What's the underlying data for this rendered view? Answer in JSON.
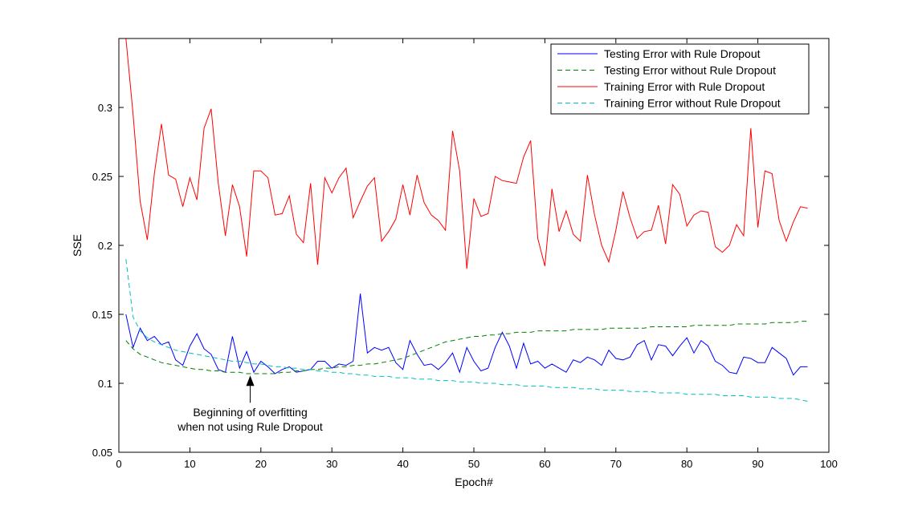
{
  "chart_data": {
    "type": "line",
    "xlabel": "Epoch#",
    "ylabel": "SSE",
    "xlim": [
      0,
      100
    ],
    "ylim": [
      0.05,
      0.35
    ],
    "xticks": [
      0,
      10,
      20,
      30,
      40,
      50,
      60,
      70,
      80,
      90,
      100
    ],
    "yticks": [
      0.05,
      0.1,
      0.15,
      0.2,
      0.25,
      0.3
    ],
    "ytick_labels": [
      "0.05",
      "0.1",
      "0.15",
      "0.2",
      "0.25",
      "0.3"
    ],
    "grid": false,
    "legend_position": "top-right",
    "series": [
      {
        "name": "Testing Error with Rule Dropout",
        "color": "#0000ff",
        "style": "solid",
        "x": [
          1,
          2,
          3,
          4,
          5,
          6,
          7,
          8,
          9,
          10,
          11,
          12,
          13,
          14,
          15,
          16,
          17,
          18,
          19,
          20,
          21,
          22,
          23,
          24,
          25,
          26,
          27,
          28,
          29,
          30,
          31,
          32,
          33,
          34,
          35,
          36,
          37,
          38,
          39,
          40,
          41,
          42,
          43,
          44,
          45,
          46,
          47,
          48,
          49,
          50,
          51,
          52,
          53,
          54,
          55,
          56,
          57,
          58,
          59,
          60,
          61,
          62,
          63,
          64,
          65,
          66,
          67,
          68,
          69,
          70,
          71,
          72,
          73,
          74,
          75,
          76,
          77,
          78,
          79,
          80,
          81,
          82,
          83,
          84,
          85,
          86,
          87,
          88,
          89,
          90,
          91,
          92,
          93,
          94,
          95,
          96,
          97
        ],
        "y": [
          0.15,
          0.126,
          0.14,
          0.131,
          0.134,
          0.128,
          0.13,
          0.117,
          0.113,
          0.127,
          0.136,
          0.125,
          0.121,
          0.11,
          0.108,
          0.134,
          0.111,
          0.123,
          0.108,
          0.116,
          0.112,
          0.107,
          0.11,
          0.112,
          0.108,
          0.109,
          0.11,
          0.116,
          0.116,
          0.111,
          0.114,
          0.113,
          0.116,
          0.165,
          0.122,
          0.126,
          0.124,
          0.126,
          0.115,
          0.11,
          0.131,
          0.121,
          0.113,
          0.114,
          0.11,
          0.115,
          0.122,
          0.108,
          0.126,
          0.116,
          0.109,
          0.111,
          0.126,
          0.137,
          0.127,
          0.111,
          0.129,
          0.114,
          0.116,
          0.111,
          0.114,
          0.111,
          0.108,
          0.117,
          0.115,
          0.119,
          0.117,
          0.113,
          0.124,
          0.118,
          0.117,
          0.119,
          0.128,
          0.131,
          0.117,
          0.128,
          0.127,
          0.12,
          0.127,
          0.133,
          0.122,
          0.131,
          0.127,
          0.116,
          0.113,
          0.108,
          0.107,
          0.119,
          0.118,
          0.115,
          0.115,
          0.126,
          0.122,
          0.118,
          0.106,
          0.112,
          0.112
        ]
      },
      {
        "name": "Testing Error without Rule Dropout",
        "color": "#008000",
        "style": "dashed",
        "x": [
          1,
          2,
          3,
          4,
          5,
          6,
          7,
          8,
          9,
          10,
          11,
          12,
          13,
          14,
          15,
          16,
          17,
          18,
          19,
          20,
          21,
          22,
          23,
          24,
          25,
          26,
          27,
          28,
          29,
          30,
          31,
          32,
          33,
          34,
          35,
          36,
          37,
          38,
          39,
          40,
          41,
          42,
          43,
          44,
          45,
          46,
          47,
          48,
          49,
          50,
          51,
          52,
          53,
          54,
          55,
          56,
          57,
          58,
          59,
          60,
          61,
          62,
          63,
          64,
          65,
          66,
          67,
          68,
          69,
          70,
          71,
          72,
          73,
          74,
          75,
          76,
          77,
          78,
          79,
          80,
          81,
          82,
          83,
          84,
          85,
          86,
          87,
          88,
          89,
          90,
          91,
          92,
          93,
          94,
          95,
          96,
          97
        ],
        "y": [
          0.131,
          0.125,
          0.121,
          0.119,
          0.117,
          0.115,
          0.114,
          0.113,
          0.112,
          0.111,
          0.11,
          0.11,
          0.109,
          0.109,
          0.108,
          0.108,
          0.108,
          0.107,
          0.107,
          0.107,
          0.107,
          0.107,
          0.108,
          0.108,
          0.109,
          0.109,
          0.11,
          0.11,
          0.111,
          0.111,
          0.112,
          0.112,
          0.113,
          0.113,
          0.114,
          0.114,
          0.115,
          0.116,
          0.117,
          0.118,
          0.12,
          0.122,
          0.124,
          0.126,
          0.128,
          0.13,
          0.131,
          0.132,
          0.133,
          0.134,
          0.134,
          0.135,
          0.135,
          0.136,
          0.136,
          0.137,
          0.137,
          0.137,
          0.138,
          0.138,
          0.138,
          0.138,
          0.138,
          0.139,
          0.139,
          0.139,
          0.139,
          0.139,
          0.14,
          0.14,
          0.14,
          0.14,
          0.14,
          0.14,
          0.141,
          0.141,
          0.141,
          0.141,
          0.141,
          0.141,
          0.142,
          0.142,
          0.142,
          0.142,
          0.142,
          0.142,
          0.143,
          0.143,
          0.143,
          0.143,
          0.143,
          0.144,
          0.144,
          0.144,
          0.144,
          0.145,
          0.145
        ]
      },
      {
        "name": "Training Error with Rule Dropout",
        "color": "#ff0000",
        "style": "solid",
        "x": [
          1,
          2,
          3,
          4,
          5,
          6,
          7,
          8,
          9,
          10,
          11,
          12,
          13,
          14,
          15,
          16,
          17,
          18,
          19,
          20,
          21,
          22,
          23,
          24,
          25,
          26,
          27,
          28,
          29,
          30,
          31,
          32,
          33,
          34,
          35,
          36,
          37,
          38,
          39,
          40,
          41,
          42,
          43,
          44,
          45,
          46,
          47,
          48,
          49,
          50,
          51,
          52,
          53,
          54,
          55,
          56,
          57,
          58,
          59,
          60,
          61,
          62,
          63,
          64,
          65,
          66,
          67,
          68,
          69,
          70,
          71,
          72,
          73,
          74,
          75,
          76,
          77,
          78,
          79,
          80,
          81,
          82,
          83,
          84,
          85,
          86,
          87,
          88,
          89,
          90,
          91,
          92,
          93,
          94,
          95,
          96,
          97
        ],
        "y": [
          0.35,
          0.295,
          0.232,
          0.204,
          0.252,
          0.288,
          0.251,
          0.248,
          0.228,
          0.249,
          0.233,
          0.285,
          0.299,
          0.245,
          0.207,
          0.244,
          0.228,
          0.192,
          0.254,
          0.254,
          0.249,
          0.222,
          0.223,
          0.236,
          0.208,
          0.202,
          0.245,
          0.186,
          0.249,
          0.238,
          0.249,
          0.256,
          0.22,
          0.232,
          0.243,
          0.249,
          0.203,
          0.21,
          0.219,
          0.244,
          0.222,
          0.251,
          0.231,
          0.222,
          0.218,
          0.211,
          0.283,
          0.254,
          0.183,
          0.234,
          0.221,
          0.223,
          0.25,
          0.247,
          0.246,
          0.245,
          0.264,
          0.276,
          0.205,
          0.185,
          0.241,
          0.21,
          0.225,
          0.208,
          0.203,
          0.251,
          0.222,
          0.2,
          0.188,
          0.211,
          0.239,
          0.22,
          0.205,
          0.21,
          0.211,
          0.229,
          0.201,
          0.244,
          0.237,
          0.214,
          0.222,
          0.225,
          0.224,
          0.199,
          0.195,
          0.2,
          0.215,
          0.207,
          0.285,
          0.213,
          0.254,
          0.252,
          0.218,
          0.203,
          0.217,
          0.228,
          0.227
        ]
      },
      {
        "name": "Training Error without Rule Dropout",
        "color": "#00bfbf",
        "style": "dashed",
        "x": [
          1,
          2,
          3,
          4,
          5,
          6,
          7,
          8,
          9,
          10,
          11,
          12,
          13,
          14,
          15,
          16,
          17,
          18,
          19,
          20,
          21,
          22,
          23,
          24,
          25,
          26,
          27,
          28,
          29,
          30,
          31,
          32,
          33,
          34,
          35,
          36,
          37,
          38,
          39,
          40,
          41,
          42,
          43,
          44,
          45,
          46,
          47,
          48,
          49,
          50,
          51,
          52,
          53,
          54,
          55,
          56,
          57,
          58,
          59,
          60,
          61,
          62,
          63,
          64,
          65,
          66,
          67,
          68,
          69,
          70,
          71,
          72,
          73,
          74,
          75,
          76,
          77,
          78,
          79,
          80,
          81,
          82,
          83,
          84,
          85,
          86,
          87,
          88,
          89,
          90,
          91,
          92,
          93,
          94,
          95,
          96,
          97
        ],
        "y": [
          0.19,
          0.148,
          0.138,
          0.133,
          0.13,
          0.128,
          0.126,
          0.124,
          0.123,
          0.122,
          0.121,
          0.12,
          0.119,
          0.118,
          0.117,
          0.116,
          0.116,
          0.115,
          0.114,
          0.114,
          0.113,
          0.112,
          0.112,
          0.111,
          0.111,
          0.11,
          0.11,
          0.109,
          0.109,
          0.108,
          0.108,
          0.107,
          0.107,
          0.106,
          0.106,
          0.105,
          0.105,
          0.105,
          0.104,
          0.104,
          0.104,
          0.103,
          0.103,
          0.103,
          0.102,
          0.102,
          0.102,
          0.101,
          0.101,
          0.101,
          0.1,
          0.1,
          0.1,
          0.099,
          0.099,
          0.099,
          0.098,
          0.098,
          0.098,
          0.098,
          0.097,
          0.097,
          0.097,
          0.097,
          0.096,
          0.096,
          0.096,
          0.095,
          0.095,
          0.095,
          0.095,
          0.094,
          0.094,
          0.094,
          0.094,
          0.093,
          0.093,
          0.093,
          0.093,
          0.092,
          0.092,
          0.092,
          0.092,
          0.092,
          0.091,
          0.091,
          0.091,
          0.091,
          0.09,
          0.09,
          0.09,
          0.09,
          0.089,
          0.089,
          0.089,
          0.088,
          0.087
        ]
      }
    ],
    "annotations": [
      {
        "lines": [
          "Beginning of overfitting",
          "when not using Rule Dropout"
        ],
        "arrow_x": 18.5,
        "arrow_y": 0.108
      }
    ]
  }
}
